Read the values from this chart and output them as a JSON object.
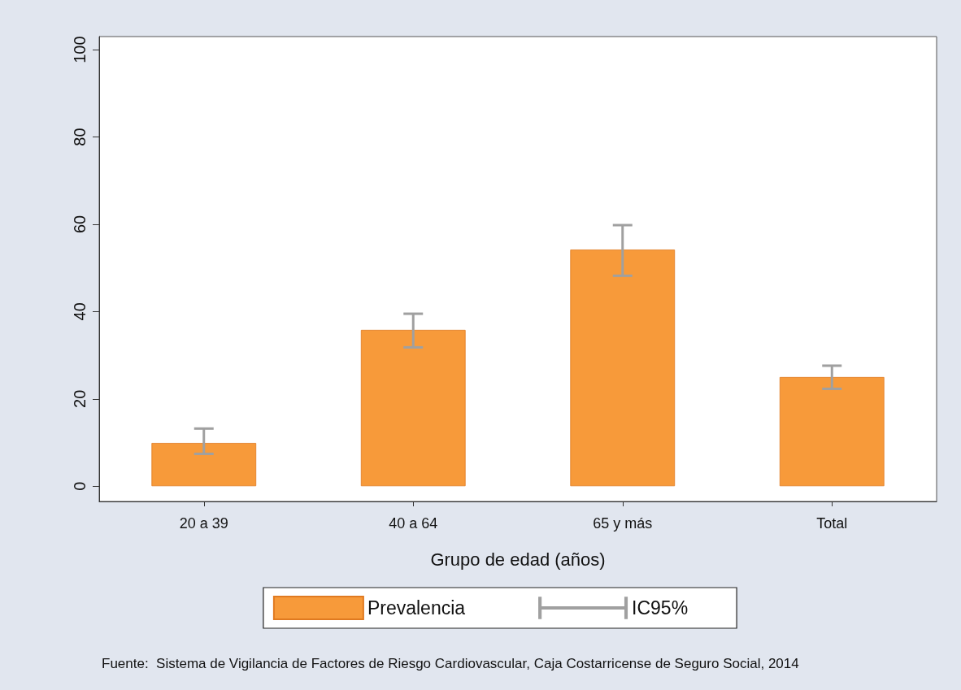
{
  "chart_data": {
    "type": "bar",
    "categories": [
      "20 a 39",
      "40 a 64",
      "65 y más",
      "Total"
    ],
    "series": [
      {
        "name": "Prevalencia",
        "color": "#f79a3a",
        "values": [
          9.9,
          35.8,
          54.2,
          25.0
        ],
        "errors": [
          [
            7.4,
            13.2
          ],
          [
            31.8,
            39.5
          ],
          [
            48.2,
            59.8
          ],
          [
            22.3,
            27.6
          ]
        ]
      }
    ],
    "xlabel": "Grupo de edad (años)",
    "ylim": [
      -3.5,
      103
    ],
    "yticks": [
      0,
      20,
      40,
      60,
      80,
      100
    ],
    "grid": false,
    "legend": "bottom",
    "annotations": [
      "IC95%",
      "Fuente:  Sistema de Vigilancia de Factores de Riesgo Cardiovascular, Caja Costarricense de Seguro Social, 2014"
    ]
  }
}
